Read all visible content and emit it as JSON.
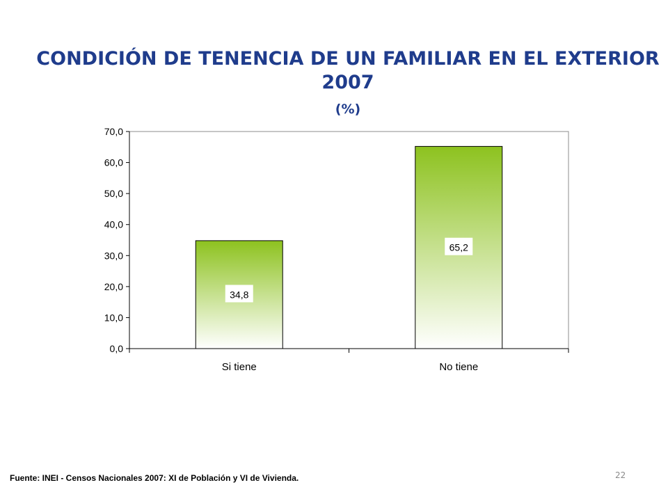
{
  "title_line1": "CONDICIÓN DE TENENCIA DE UN FAMILIAR EN EL EXTERIOR",
  "title_line2": "2007",
  "subtitle": "(%)",
  "source": "Fuente: INEI - Censos Nacionales 2007: XI de Población y VI de Vivienda.",
  "slide_number": "22",
  "colors": {
    "title": "#1f3c8c",
    "bar_top": "#8dc21f",
    "bar_bottom": "#ffffff"
  },
  "chart_data": {
    "type": "bar",
    "title": "CONDICIÓN DE TENENCIA DE UN FAMILIAR EN EL EXTERIOR 2007",
    "xlabel": "",
    "ylabel": "",
    "categories": [
      "Si tiene",
      "No tiene"
    ],
    "values": [
      34.8,
      65.2
    ],
    "value_labels": [
      "34,8",
      "65,2"
    ],
    "ylim": [
      0,
      70
    ],
    "yticks": [
      0,
      10,
      20,
      30,
      40,
      50,
      60,
      70
    ],
    "ytick_labels": [
      "0,0",
      "10,0",
      "20,0",
      "30,0",
      "40,0",
      "50,0",
      "60,0",
      "70,0"
    ],
    "grid": false,
    "legend": "none"
  }
}
